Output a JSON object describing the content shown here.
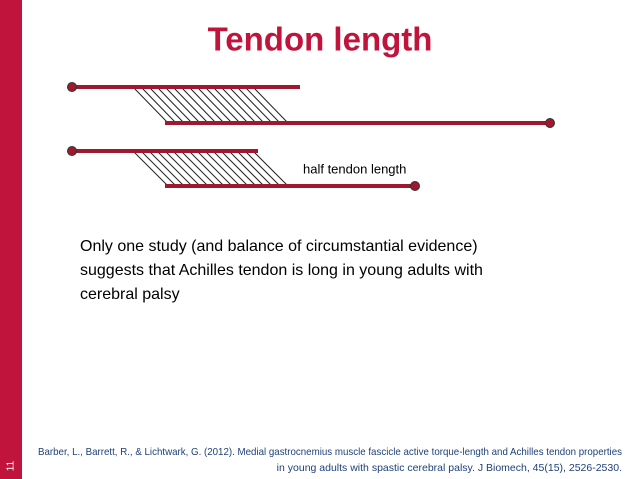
{
  "slide_number": "11",
  "title": "Tendon length",
  "diagram": {
    "label": "half tendon length"
  },
  "body": {
    "lines": [
      "Only one study (and balance of circumstantial evidence)",
      "suggests that Achilles tendon is long in young adults with",
      "cerebral palsy"
    ]
  },
  "citation": {
    "lines": [
      "Barber, L., Barrett, R., & Lichtwark, G. (2012). Medial gastrocnemius muscle fascicle active torque-length and Achilles tendon properties",
      "in young adults with spastic cerebral palsy. J Biomech, 45(15), 2526-2530."
    ]
  }
}
